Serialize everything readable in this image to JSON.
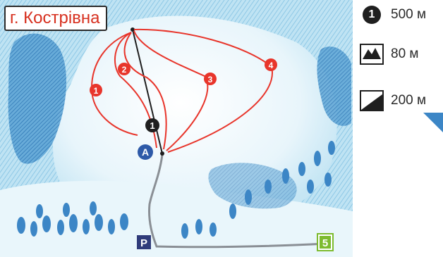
{
  "map": {
    "peak_label": "г. Кострівна",
    "station_label": "A",
    "lift_number": "1",
    "parking_label": "P",
    "route_number": "5",
    "trails": [
      {
        "number": "1",
        "color": "#e8352b"
      },
      {
        "number": "2",
        "color": "#e8352b"
      },
      {
        "number": "3",
        "color": "#e8352b"
      },
      {
        "number": "4",
        "color": "#e8352b"
      }
    ],
    "colors": {
      "trail": "#e8352b",
      "lift": "#1f1f1f",
      "station": "#2e5aa8",
      "parking": "#2f3b7a",
      "route_marker": "#7dbb2f",
      "forest": "#3c86c6",
      "path": "#8a8f95"
    }
  },
  "legend": {
    "items": [
      {
        "icon": "lift-length-icon",
        "badge": "1",
        "text": "500 м"
      },
      {
        "icon": "vertical-drop-icon",
        "text": "80 м"
      },
      {
        "icon": "slope-length-icon",
        "text": "200 м"
      }
    ]
  }
}
